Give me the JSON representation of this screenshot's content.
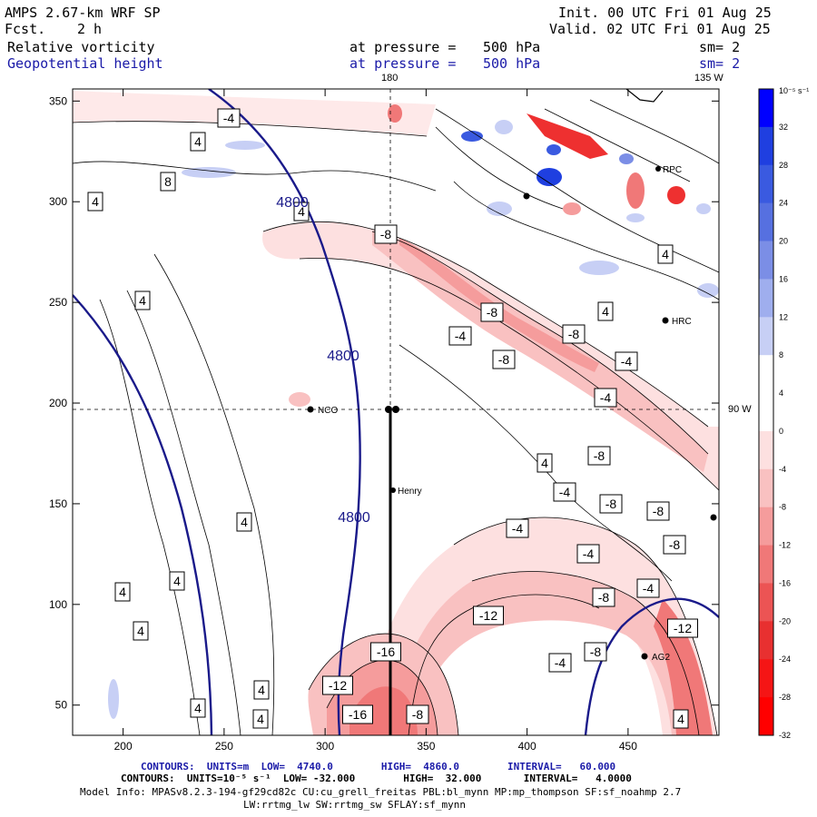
{
  "header": {
    "model": "AMPS 2.67-km WRF SP",
    "fcst_label": "Fcst.",
    "fcst_value": "2 h",
    "init": "Init. 00 UTC Fri 01 Aug 25",
    "valid": "Valid. 02 UTC Fri 01 Aug 25",
    "field1": "Relative vorticity",
    "field2": "Geopotential height",
    "pressure_label": "at pressure =",
    "pressure1": "500 hPa",
    "pressure2": "500 hPa",
    "sm1": "sm= 2",
    "sm2": "sm= 2",
    "lon_180": "180",
    "lon_135": "135 W",
    "lat_90": "90 W"
  },
  "colorbar": {
    "units": "10⁻⁵ s⁻¹",
    "labels": [
      "32",
      "28",
      "24",
      "20",
      "16",
      "12",
      "8",
      "4",
      "0",
      "-4",
      "-8",
      "-12",
      "-16",
      "-20",
      "-24",
      "-28",
      "-32"
    ],
    "colors": [
      "#0000ff",
      "#1f3fe0",
      "#3a5ae0",
      "#5670e0",
      "#7b8ee6",
      "#9faeee",
      "#c7cff5",
      "#ffffff",
      "#ffffff",
      "#fde0e0",
      "#f9c1c1",
      "#f59c9c",
      "#f07878",
      "#ec5454",
      "#e83030",
      "#f51515",
      "#ff0000"
    ]
  },
  "stations": {
    "nco": "NCO",
    "henry": "Henry",
    "hrc": "HRC",
    "ag2": "AG2",
    "rpc": "RPC"
  },
  "footer": {
    "line1": "CONTOURS:  UNITS=m  LOW=  4740.0        HIGH=  4860.0        INTERVAL=   60.000",
    "line2": "CONTOURS:  UNITS=10⁻⁵ s⁻¹  LOW= -32.000        HIGH=  32.000       INTERVAL=   4.0000",
    "line3": "Model Info: MPASv8.2.3-194-gf29cd82c CU:cu_grell_freitas PBL:bl_mynn MP:mp_thompson SF:sf_noahmp 2.7",
    "line4": "LW:rrtmg_lw SW:rrtmg_sw SFLAY:sf_mynn"
  },
  "chart_data": {
    "type": "heatmap",
    "title": "Relative vorticity / Geopotential height at 500 hPa",
    "x_ticks": [
      200,
      250,
      300,
      350,
      400,
      450
    ],
    "y_ticks": [
      50,
      100,
      150,
      200,
      250,
      300,
      350
    ],
    "xlim": [
      175,
      495
    ],
    "ylim": [
      35,
      356
    ],
    "height_contours": {
      "units": "m",
      "low": 4740.0,
      "high": 4860.0,
      "interval": 60.0,
      "labels": [
        "4800",
        "4800",
        "4800"
      ]
    },
    "vorticity_contours": {
      "units": "10⁻⁵ s⁻¹",
      "low": -32.0,
      "high": 32.0,
      "interval": 4.0,
      "labels": [
        "-4",
        "4",
        "4",
        "8",
        "4",
        "4",
        "4",
        "4",
        "4",
        "4",
        "4",
        "4",
        "4",
        "-8",
        "-8",
        "-4",
        "-8",
        "-8",
        "-4",
        "-4",
        "4",
        "-8",
        "4",
        "4",
        "-4",
        "-8",
        "-4",
        "-8",
        "-4",
        "-8",
        "-4",
        "-8",
        "-12",
        "-12",
        "-8",
        "-4",
        "-16",
        "-12",
        "-16",
        "-8",
        "4"
      ]
    }
  }
}
